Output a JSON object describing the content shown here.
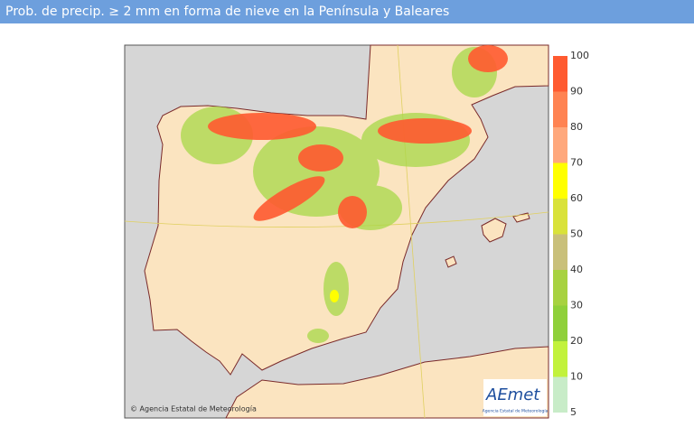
{
  "header": {
    "title": "Prob. de precip. ≥ 2 mm en forma de nieve en la Península y Baleares"
  },
  "legend": {
    "ticks": [
      100,
      90,
      80,
      70,
      60,
      50,
      40,
      30,
      20,
      10,
      5
    ],
    "colors": [
      "#ff5a30",
      "#ff8352",
      "#ffa87c",
      "#ffff00",
      "#d9e23a",
      "#c9c07a",
      "#a7d240",
      "#8fd03a",
      "#c2f23c",
      "#c8ecc8"
    ]
  },
  "map": {
    "credit": "© Agencia Estatal de Meteorología"
  },
  "logo": {
    "text": "AEmet",
    "subtitle": "Agencia Estatal de Meteorología"
  }
}
